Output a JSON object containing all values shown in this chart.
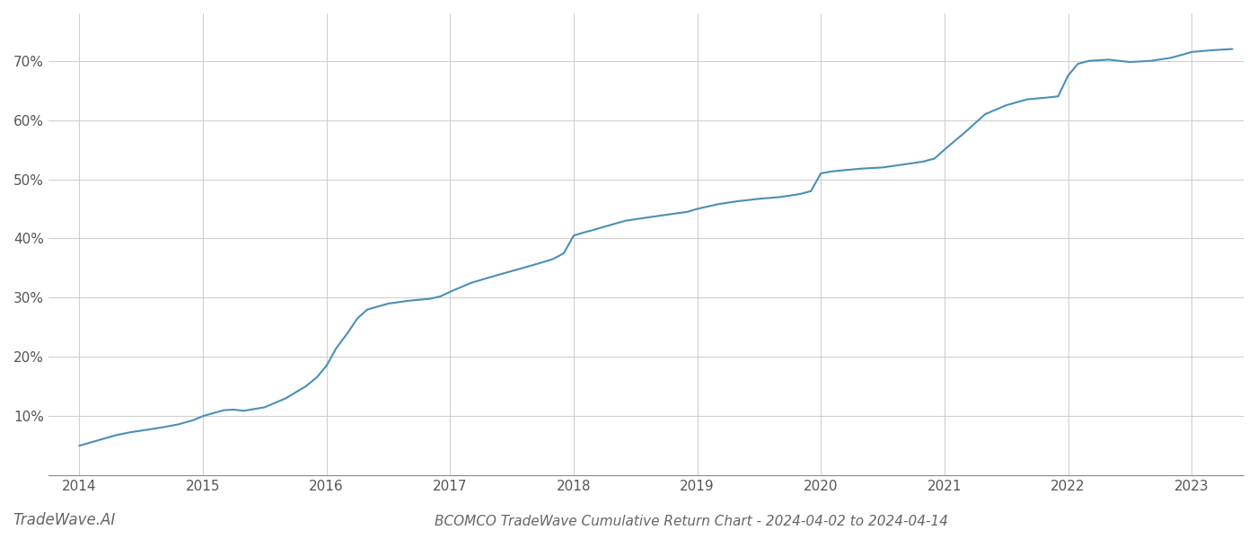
{
  "title": "BCOMCO TradeWave Cumulative Return Chart - 2024-04-02 to 2024-04-14",
  "watermark": "TradeWave.AI",
  "line_color": "#4a90b8",
  "background_color": "#ffffff",
  "grid_color": "#cccccc",
  "x_years": [
    2014,
    2015,
    2016,
    2017,
    2018,
    2019,
    2020,
    2021,
    2022,
    2023
  ],
  "x_data": [
    2014.0,
    2014.1,
    2014.2,
    2014.3,
    2014.42,
    2014.55,
    2014.67,
    2014.8,
    2014.92,
    2015.0,
    2015.1,
    2015.17,
    2015.25,
    2015.33,
    2015.5,
    2015.67,
    2015.83,
    2015.92,
    2016.0,
    2016.08,
    2016.17,
    2016.25,
    2016.33,
    2016.5,
    2016.67,
    2016.83,
    2016.92,
    2017.0,
    2017.17,
    2017.33,
    2017.5,
    2017.67,
    2017.83,
    2017.92,
    2018.0,
    2018.08,
    2018.17,
    2018.25,
    2018.42,
    2018.58,
    2018.75,
    2018.92,
    2019.0,
    2019.17,
    2019.33,
    2019.5,
    2019.67,
    2019.83,
    2019.92,
    2020.0,
    2020.08,
    2020.17,
    2020.33,
    2020.5,
    2020.67,
    2020.83,
    2020.92,
    2021.0,
    2021.17,
    2021.33,
    2021.5,
    2021.67,
    2021.83,
    2021.92,
    2022.0,
    2022.08,
    2022.17,
    2022.33,
    2022.5,
    2022.67,
    2022.83,
    2022.92,
    2023.0,
    2023.17,
    2023.33
  ],
  "y_data": [
    5.0,
    5.6,
    6.2,
    6.8,
    7.3,
    7.7,
    8.1,
    8.6,
    9.3,
    10.0,
    10.6,
    11.0,
    11.1,
    10.9,
    11.5,
    13.0,
    15.0,
    16.5,
    18.5,
    21.5,
    24.0,
    26.5,
    28.0,
    29.0,
    29.5,
    29.8,
    30.2,
    31.0,
    32.5,
    33.5,
    34.5,
    35.5,
    36.5,
    37.5,
    40.5,
    41.0,
    41.5,
    42.0,
    43.0,
    43.5,
    44.0,
    44.5,
    45.0,
    45.8,
    46.3,
    46.7,
    47.0,
    47.5,
    48.0,
    51.0,
    51.3,
    51.5,
    51.8,
    52.0,
    52.5,
    53.0,
    53.5,
    55.0,
    58.0,
    61.0,
    62.5,
    63.5,
    63.8,
    64.0,
    67.5,
    69.5,
    70.0,
    70.2,
    69.8,
    70.0,
    70.5,
    71.0,
    71.5,
    71.8,
    72.0
  ],
  "ylim": [
    0,
    78
  ],
  "yticks": [
    10,
    20,
    30,
    40,
    50,
    60,
    70
  ],
  "xlim": [
    2013.75,
    2023.42
  ],
  "title_fontsize": 11,
  "watermark_fontsize": 12,
  "tick_fontsize": 11,
  "line_width": 1.5
}
